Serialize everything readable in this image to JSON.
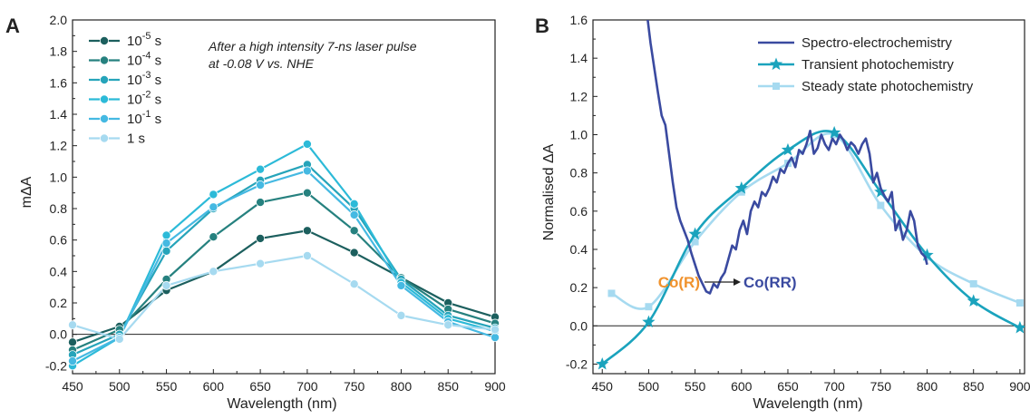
{
  "chart_data": [
    {
      "type": "line",
      "panel": "A",
      "xlabel": "Wavelength (nm)",
      "ylabel": "mΔA",
      "xlim": [
        450,
        900
      ],
      "ylim": [
        -0.25,
        2.0
      ],
      "xticks": [
        450,
        500,
        550,
        600,
        650,
        700,
        750,
        800,
        850,
        900
      ],
      "yticks": [
        -0.2,
        0.0,
        0.2,
        0.4,
        0.6,
        0.8,
        1.0,
        1.2,
        1.4,
        1.6,
        1.8,
        2.0
      ],
      "zero_line": true,
      "annotation_lines": [
        "After a high intensity 7-ns laser pulse",
        "at -0.08 V vs. NHE"
      ],
      "legend_position": "top-left",
      "x": [
        450,
        500,
        550,
        600,
        650,
        700,
        750,
        800,
        850,
        900
      ],
      "series": [
        {
          "name_base": "10",
          "name_exp": "-5",
          "name_unit": " s",
          "color": "#1c5f5e",
          "values": [
            -0.05,
            0.05,
            0.28,
            0.4,
            0.61,
            0.66,
            0.52,
            0.36,
            0.2,
            0.11
          ]
        },
        {
          "name_base": "10",
          "name_exp": "-4",
          "name_unit": " s",
          "color": "#26817f",
          "values": [
            -0.1,
            0.03,
            0.35,
            0.62,
            0.84,
            0.9,
            0.66,
            0.36,
            0.16,
            0.07
          ]
        },
        {
          "name_base": "10",
          "name_exp": "-3",
          "name_unit": " s",
          "color": "#26a4ba",
          "values": [
            -0.13,
            0.0,
            0.53,
            0.8,
            0.98,
            1.08,
            0.8,
            0.35,
            0.12,
            0.04
          ]
        },
        {
          "name_base": "10",
          "name_exp": "-2",
          "name_unit": " s",
          "color": "#2cbad8",
          "values": [
            -0.2,
            -0.02,
            0.63,
            0.89,
            1.05,
            1.21,
            0.83,
            0.33,
            0.1,
            0.02
          ]
        },
        {
          "name_base": "10",
          "name_exp": "-1",
          "name_unit": " s",
          "color": "#45b9e2",
          "values": [
            -0.17,
            -0.02,
            0.58,
            0.81,
            0.95,
            1.04,
            0.76,
            0.31,
            0.08,
            -0.02
          ]
        },
        {
          "name_base": "1",
          "name_exp": "",
          "name_unit": " s",
          "color": "#a6daf0",
          "values": [
            0.06,
            -0.03,
            0.31,
            0.4,
            0.45,
            0.5,
            0.32,
            0.12,
            0.06,
            0.03
          ]
        }
      ]
    },
    {
      "type": "line",
      "panel": "B",
      "xlabel": "Wavelength (nm)",
      "ylabel": "Normalised ΔA",
      "xlim": [
        440,
        905
      ],
      "ylim": [
        -0.25,
        1.6
      ],
      "xticks": [
        450,
        500,
        550,
        600,
        650,
        700,
        750,
        800,
        850,
        900
      ],
      "yticks": [
        -0.2,
        0.0,
        0.2,
        0.4,
        0.6,
        0.8,
        1.0,
        1.2,
        1.4,
        1.6
      ],
      "zero_line": true,
      "legend_position": "top-right",
      "annotation_from": "Co(R)",
      "annotation_to": "Co(RR)",
      "annotation_from_color": "#f0922d",
      "annotation_to_color": "#3a4aa0",
      "series": [
        {
          "name": "Spectro-electrochemistry",
          "color": "#3a4aa0",
          "marker": "none",
          "x": [
            499,
            502,
            506,
            510,
            514,
            518,
            522,
            526,
            530,
            534,
            538,
            542,
            546,
            550,
            554,
            558,
            562,
            566,
            570,
            574,
            578,
            582,
            586,
            590,
            594,
            598,
            602,
            606,
            610,
            614,
            618,
            622,
            626,
            630,
            634,
            638,
            642,
            646,
            650,
            654,
            658,
            662,
            666,
            670,
            674,
            678,
            682,
            686,
            690,
            694,
            698,
            702,
            706,
            710,
            714,
            718,
            722,
            726,
            730,
            734,
            738,
            742,
            746,
            750,
            754,
            758,
            762,
            766,
            770,
            774,
            778,
            782,
            786,
            790,
            794,
            798,
            800
          ],
          "y": [
            1.6,
            1.48,
            1.35,
            1.22,
            1.1,
            1.05,
            0.9,
            0.75,
            0.62,
            0.55,
            0.5,
            0.45,
            0.38,
            0.32,
            0.26,
            0.22,
            0.18,
            0.17,
            0.22,
            0.2,
            0.25,
            0.28,
            0.35,
            0.42,
            0.4,
            0.5,
            0.55,
            0.48,
            0.6,
            0.65,
            0.62,
            0.7,
            0.68,
            0.72,
            0.78,
            0.75,
            0.82,
            0.8,
            0.85,
            0.88,
            0.83,
            0.92,
            0.9,
            0.95,
            1.02,
            0.9,
            0.93,
            1.0,
            0.95,
            0.92,
            0.98,
            0.95,
            1.0,
            0.97,
            0.92,
            0.96,
            0.94,
            0.9,
            0.95,
            0.98,
            0.9,
            0.75,
            0.8,
            0.72,
            0.68,
            0.65,
            0.7,
            0.5,
            0.55,
            0.45,
            0.5,
            0.6,
            0.55,
            0.42,
            0.38,
            0.36,
            0.32
          ]
        },
        {
          "name": "Transient photochemistry",
          "color": "#1aa3bd",
          "marker": "star",
          "x": [
            450,
            500,
            550,
            600,
            650,
            700,
            750,
            800,
            850,
            900
          ],
          "y": [
            -0.2,
            0.02,
            0.48,
            0.72,
            0.92,
            1.01,
            0.7,
            0.37,
            0.13,
            -0.01
          ]
        },
        {
          "name": "Steady state photochemistry",
          "color": "#a6daf0",
          "marker": "square",
          "x": [
            460,
            500,
            550,
            600,
            650,
            700,
            750,
            800,
            850,
            900
          ],
          "y": [
            0.17,
            0.1,
            0.44,
            0.7,
            0.85,
            1.0,
            0.63,
            0.36,
            0.22,
            0.12
          ]
        }
      ]
    }
  ]
}
